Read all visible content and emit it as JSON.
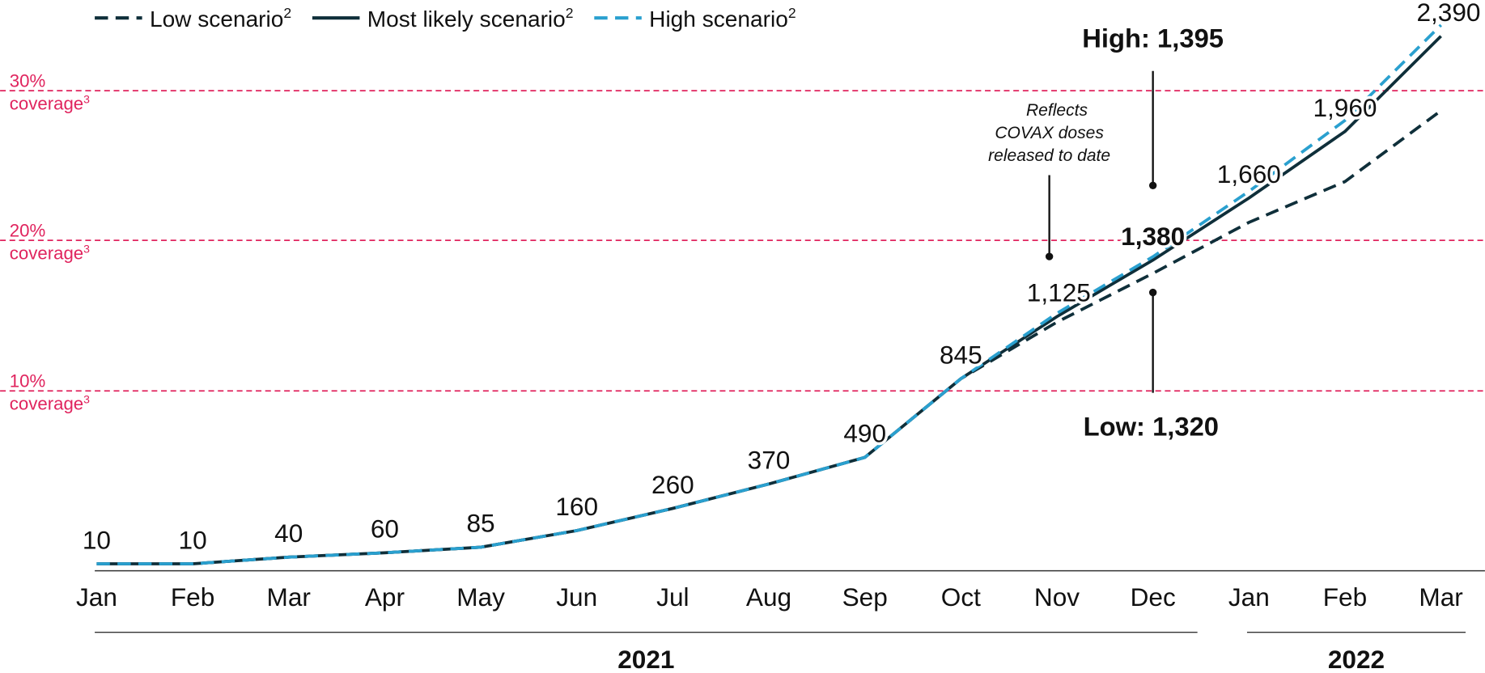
{
  "chart_data": {
    "type": "line",
    "categories": [
      "Jan",
      "Feb",
      "Mar",
      "Apr",
      "May",
      "Jun",
      "Jul",
      "Aug",
      "Sep",
      "Oct",
      "Nov",
      "Dec",
      "Jan",
      "Feb",
      "Mar"
    ],
    "year_groups": [
      {
        "label": "2021",
        "from": 0,
        "to": 11
      },
      {
        "label": "2022",
        "from": 12,
        "to": 14
      }
    ],
    "series": [
      {
        "name": "Most likely scenario",
        "footnote": "2",
        "color": "#0f2f3a",
        "dash": false,
        "values": [
          10,
          10,
          40,
          60,
          85,
          160,
          260,
          370,
          490,
          845,
          1125,
          1380,
          1660,
          1960,
          2390
        ],
        "value_labels": [
          "10",
          "10",
          "40",
          "60",
          "85",
          "160",
          "260",
          "370",
          "490",
          "845",
          "1,125",
          "1,380",
          "1,660",
          "1,960",
          "2,390"
        ]
      },
      {
        "name": "Low scenario",
        "footnote": "2",
        "color": "#0f2f3a",
        "dash": true,
        "values": [
          10,
          10,
          40,
          60,
          85,
          160,
          260,
          370,
          490,
          845,
          1100,
          1320,
          1550,
          1734,
          2054
        ]
      },
      {
        "name": "High scenario",
        "footnote": "2",
        "color": "#2aa0cf",
        "dash": true,
        "values": [
          10,
          10,
          40,
          60,
          85,
          160,
          260,
          370,
          490,
          845,
          1140,
          1395,
          1690,
          2010,
          2440
        ]
      }
    ],
    "legend_order": [
      1,
      0,
      2
    ],
    "ylim": [
      0,
      2553
    ],
    "reference_lines": [
      {
        "value": 790,
        "label": "10%",
        "sublabel": "coverage",
        "footnote": "3"
      },
      {
        "value": 1469,
        "label": "20%",
        "sublabel": "coverage",
        "footnote": "3"
      },
      {
        "value": 2144,
        "label": "30%",
        "sublabel": "coverage",
        "footnote": "3"
      }
    ],
    "reference_color": "#e0245e",
    "annotations": {
      "high": "High: 1,395",
      "low": "Low: 1,320",
      "note": [
        "Reflects",
        "COVAX doses",
        "released to date"
      ]
    }
  }
}
